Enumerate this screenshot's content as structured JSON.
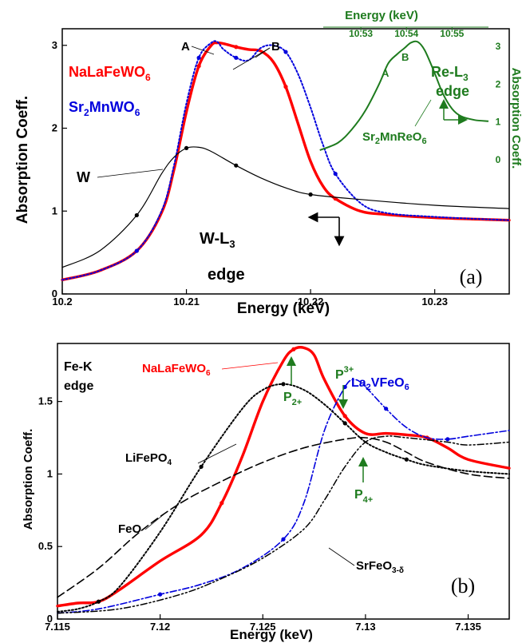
{
  "chart_data": [
    {
      "panel": "a",
      "type": "line",
      "panel_label": "(a)",
      "xlabel": "Energy (keV)",
      "ylabel": "Absorption Coeff.",
      "xlim": [
        10.2,
        10.236
      ],
      "ylim": [
        0,
        3.2
      ],
      "xticks": [
        "10.2",
        "10.21",
        "10.22",
        "10.23"
      ],
      "yticks": [
        "0",
        "1",
        "2",
        "3"
      ],
      "annotations": {
        "A": "A",
        "B": "B",
        "W": "W",
        "edge_main": "W-L",
        "edge_sub": "3",
        "edge_word": "edge"
      },
      "series": [
        {
          "name": "NaLaFeWO6",
          "label_main": "NaLaFeWO",
          "label_sub": "6",
          "color": "#ff0000",
          "style": "solid-thick",
          "x": [
            10.2,
            10.203,
            10.206,
            10.208,
            10.209,
            10.21,
            10.211,
            10.212,
            10.2125,
            10.213,
            10.214,
            10.215,
            10.216,
            10.217,
            10.218,
            10.219,
            10.22,
            10.221,
            10.222,
            10.224,
            10.226,
            10.23,
            10.236
          ],
          "y": [
            0.17,
            0.28,
            0.52,
            0.98,
            1.5,
            2.2,
            2.75,
            3.0,
            3.03,
            3.02,
            2.98,
            2.95,
            2.93,
            2.8,
            2.5,
            2.05,
            1.6,
            1.3,
            1.15,
            1.0,
            0.96,
            0.92,
            0.89
          ]
        },
        {
          "name": "Sr2MnWO6",
          "label_pre": "Sr",
          "label_sub": "2",
          "label_post": "MnWO",
          "label_sub2": "6",
          "color": "#0000dd",
          "style": "dotted",
          "x": [
            10.2,
            10.203,
            10.206,
            10.208,
            10.209,
            10.21,
            10.211,
            10.212,
            10.2125,
            10.213,
            10.214,
            10.215,
            10.216,
            10.217,
            10.218,
            10.219,
            10.22,
            10.221,
            10.222,
            10.224,
            10.226,
            10.23,
            10.236
          ],
          "y": [
            0.17,
            0.28,
            0.52,
            1.0,
            1.55,
            2.3,
            2.85,
            3.03,
            3.04,
            2.95,
            2.85,
            2.82,
            2.97,
            3.0,
            2.92,
            2.65,
            2.25,
            1.8,
            1.45,
            1.1,
            0.98,
            0.93,
            0.89
          ]
        },
        {
          "name": "W",
          "color": "#000000",
          "style": "solid-thin",
          "x": [
            10.2,
            10.203,
            10.206,
            10.208,
            10.209,
            10.21,
            10.211,
            10.212,
            10.214,
            10.216,
            10.218,
            10.22,
            10.224,
            10.23,
            10.236
          ],
          "y": [
            0.32,
            0.52,
            0.95,
            1.45,
            1.65,
            1.76,
            1.77,
            1.72,
            1.55,
            1.4,
            1.28,
            1.2,
            1.14,
            1.07,
            1.03
          ]
        }
      ],
      "inset": {
        "xlabel": "Energy (keV)",
        "ylabel": "Absorption Coeff.",
        "xlim": [
          10.52,
          10.558
        ],
        "ylim": [
          -0.3,
          3.3
        ],
        "xticks": [
          "10.53",
          "10.54",
          "10.55"
        ],
        "yticks": [
          "0",
          "1",
          "2",
          "3"
        ],
        "color": "#1e7b1e",
        "edge_main": "Re-L",
        "edge_sub": "3",
        "edge_word": "edge",
        "label_pre": "Sr",
        "label_sub": "2",
        "label_post": "MnReO",
        "label_sub2": "6",
        "A": "A",
        "B": "B",
        "series": {
          "name": "Sr2MnReO6",
          "x": [
            10.521,
            10.525,
            10.528,
            10.531,
            10.534,
            10.536,
            10.538,
            10.5395,
            10.541,
            10.5425,
            10.544,
            10.546,
            10.548,
            10.55,
            10.552,
            10.555,
            10.558
          ],
          "y": [
            0.25,
            0.45,
            0.8,
            1.3,
            2.0,
            2.55,
            2.8,
            2.95,
            3.1,
            3.12,
            2.9,
            2.35,
            1.75,
            1.35,
            1.15,
            1.05,
            1.02
          ]
        }
      }
    },
    {
      "panel": "b",
      "type": "line",
      "panel_label": "(b)",
      "xlabel": "Energy (keV)",
      "ylabel": "Absorption Coeff.",
      "xlim": [
        7.115,
        7.137
      ],
      "ylim": [
        0,
        1.9
      ],
      "xticks": [
        "7.115",
        "7.12",
        "7.125",
        "7.13",
        "7.135"
      ],
      "yticks": [
        "0",
        "0.5",
        "1",
        "1.5"
      ],
      "annotations": {
        "edge_main": "Fe-K",
        "edge_word": "edge",
        "P2_main": "P",
        "P2_sub": "2+",
        "P3_main": "P",
        "P3_sub": "3+",
        "P4_main": "P",
        "P4_sub": "4+"
      },
      "series": [
        {
          "name": "NaLaFeWO6",
          "label_main": "NaLaFeWO",
          "label_sub": "6",
          "color": "#ff0000",
          "style": "solid-thick",
          "x": [
            7.115,
            7.116,
            7.117,
            7.118,
            7.12,
            7.122,
            7.123,
            7.124,
            7.125,
            7.126,
            7.1265,
            7.127,
            7.1275,
            7.128,
            7.129,
            7.13,
            7.131,
            7.132,
            7.133,
            7.134,
            7.135,
            7.137
          ],
          "y": [
            0.09,
            0.11,
            0.12,
            0.2,
            0.4,
            0.58,
            0.8,
            1.12,
            1.5,
            1.78,
            1.86,
            1.87,
            1.82,
            1.65,
            1.4,
            1.28,
            1.28,
            1.27,
            1.25,
            1.18,
            1.1,
            1.04
          ]
        },
        {
          "name": "La2VFeO6",
          "label_pre": "La",
          "label_sub": "2",
          "label_post": "VFeO",
          "label_sub2": "6",
          "color": "#0000dd",
          "style": "dashdot",
          "x": [
            7.115,
            7.117,
            7.12,
            7.122,
            7.124,
            7.126,
            7.127,
            7.128,
            7.129,
            7.1295,
            7.13,
            7.131,
            7.132,
            7.133,
            7.134,
            7.135,
            7.137
          ],
          "y": [
            0.04,
            0.07,
            0.17,
            0.24,
            0.35,
            0.55,
            0.8,
            1.3,
            1.6,
            1.65,
            1.6,
            1.45,
            1.32,
            1.25,
            1.24,
            1.26,
            1.3
          ]
        },
        {
          "name": "LiFePO4",
          "label_main": "LiFePO",
          "label_sub": "4",
          "color": "#000000",
          "style": "dotted",
          "x": [
            7.115,
            7.116,
            7.117,
            7.118,
            7.12,
            7.122,
            7.124,
            7.125,
            7.126,
            7.127,
            7.128,
            7.129,
            7.13,
            7.131,
            7.132,
            7.133,
            7.135,
            7.137
          ],
          "y": [
            0.05,
            0.07,
            0.12,
            0.22,
            0.6,
            1.05,
            1.45,
            1.58,
            1.62,
            1.58,
            1.48,
            1.35,
            1.22,
            1.15,
            1.1,
            1.06,
            1.02,
            1.0
          ]
        },
        {
          "name": "FeO",
          "color": "#000000",
          "style": "dashed",
          "x": [
            7.115,
            7.117,
            7.119,
            7.121,
            7.123,
            7.125,
            7.127,
            7.129,
            7.13,
            7.131,
            7.132,
            7.133,
            7.135,
            7.137
          ],
          "y": [
            0.15,
            0.35,
            0.6,
            0.8,
            0.95,
            1.08,
            1.18,
            1.24,
            1.25,
            1.22,
            1.15,
            1.08,
            1.0,
            0.97
          ]
        },
        {
          "name": "SrFeO3-δ",
          "label_main": "SrFeO",
          "label_sub": "3-δ",
          "color": "#000000",
          "style": "dashdotdot",
          "x": [
            7.115,
            7.118,
            7.121,
            7.123,
            7.125,
            7.127,
            7.128,
            7.129,
            7.13,
            7.131,
            7.132,
            7.134,
            7.135,
            7.137
          ],
          "y": [
            0.04,
            0.07,
            0.17,
            0.28,
            0.42,
            0.62,
            0.82,
            1.05,
            1.22,
            1.26,
            1.25,
            1.22,
            1.2,
            1.22
          ]
        }
      ]
    }
  ]
}
